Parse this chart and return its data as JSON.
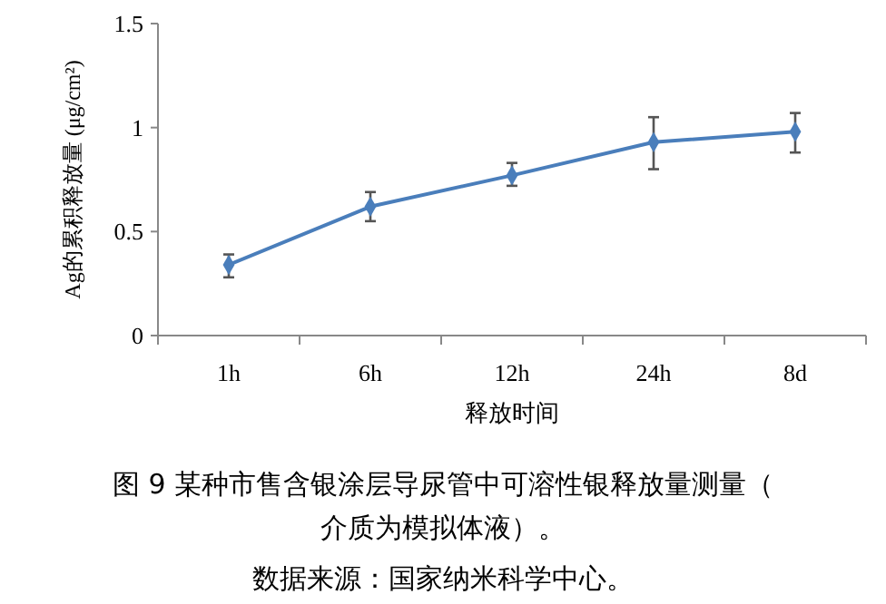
{
  "chart_data": {
    "type": "line",
    "title": "图 9 某种市售含银涂层导尿管中可溶性银释放量测量（介质为模拟体液）。",
    "xlabel": "释放时间",
    "ylabel": "Ag的累积释放量 (μg/cm²)",
    "categories": [
      "1h",
      "6h",
      "12h",
      "24h",
      "8d"
    ],
    "series": [
      {
        "color": "#4a7ebb",
        "values": [
          0.34,
          0.62,
          0.77,
          0.93,
          0.98
        ],
        "errors": [
          [
            0.28,
            0.39
          ],
          [
            0.55,
            0.69
          ],
          [
            0.72,
            0.83
          ],
          [
            0.8,
            1.05
          ],
          [
            0.88,
            1.07
          ]
        ]
      }
    ],
    "ylim": [
      0,
      1.5
    ],
    "yticks": [
      0,
      0.5,
      1,
      1.5
    ],
    "marker": "diamond",
    "grid": false,
    "annotations": [
      "数据来源：国家纳米科学中心。"
    ]
  }
}
